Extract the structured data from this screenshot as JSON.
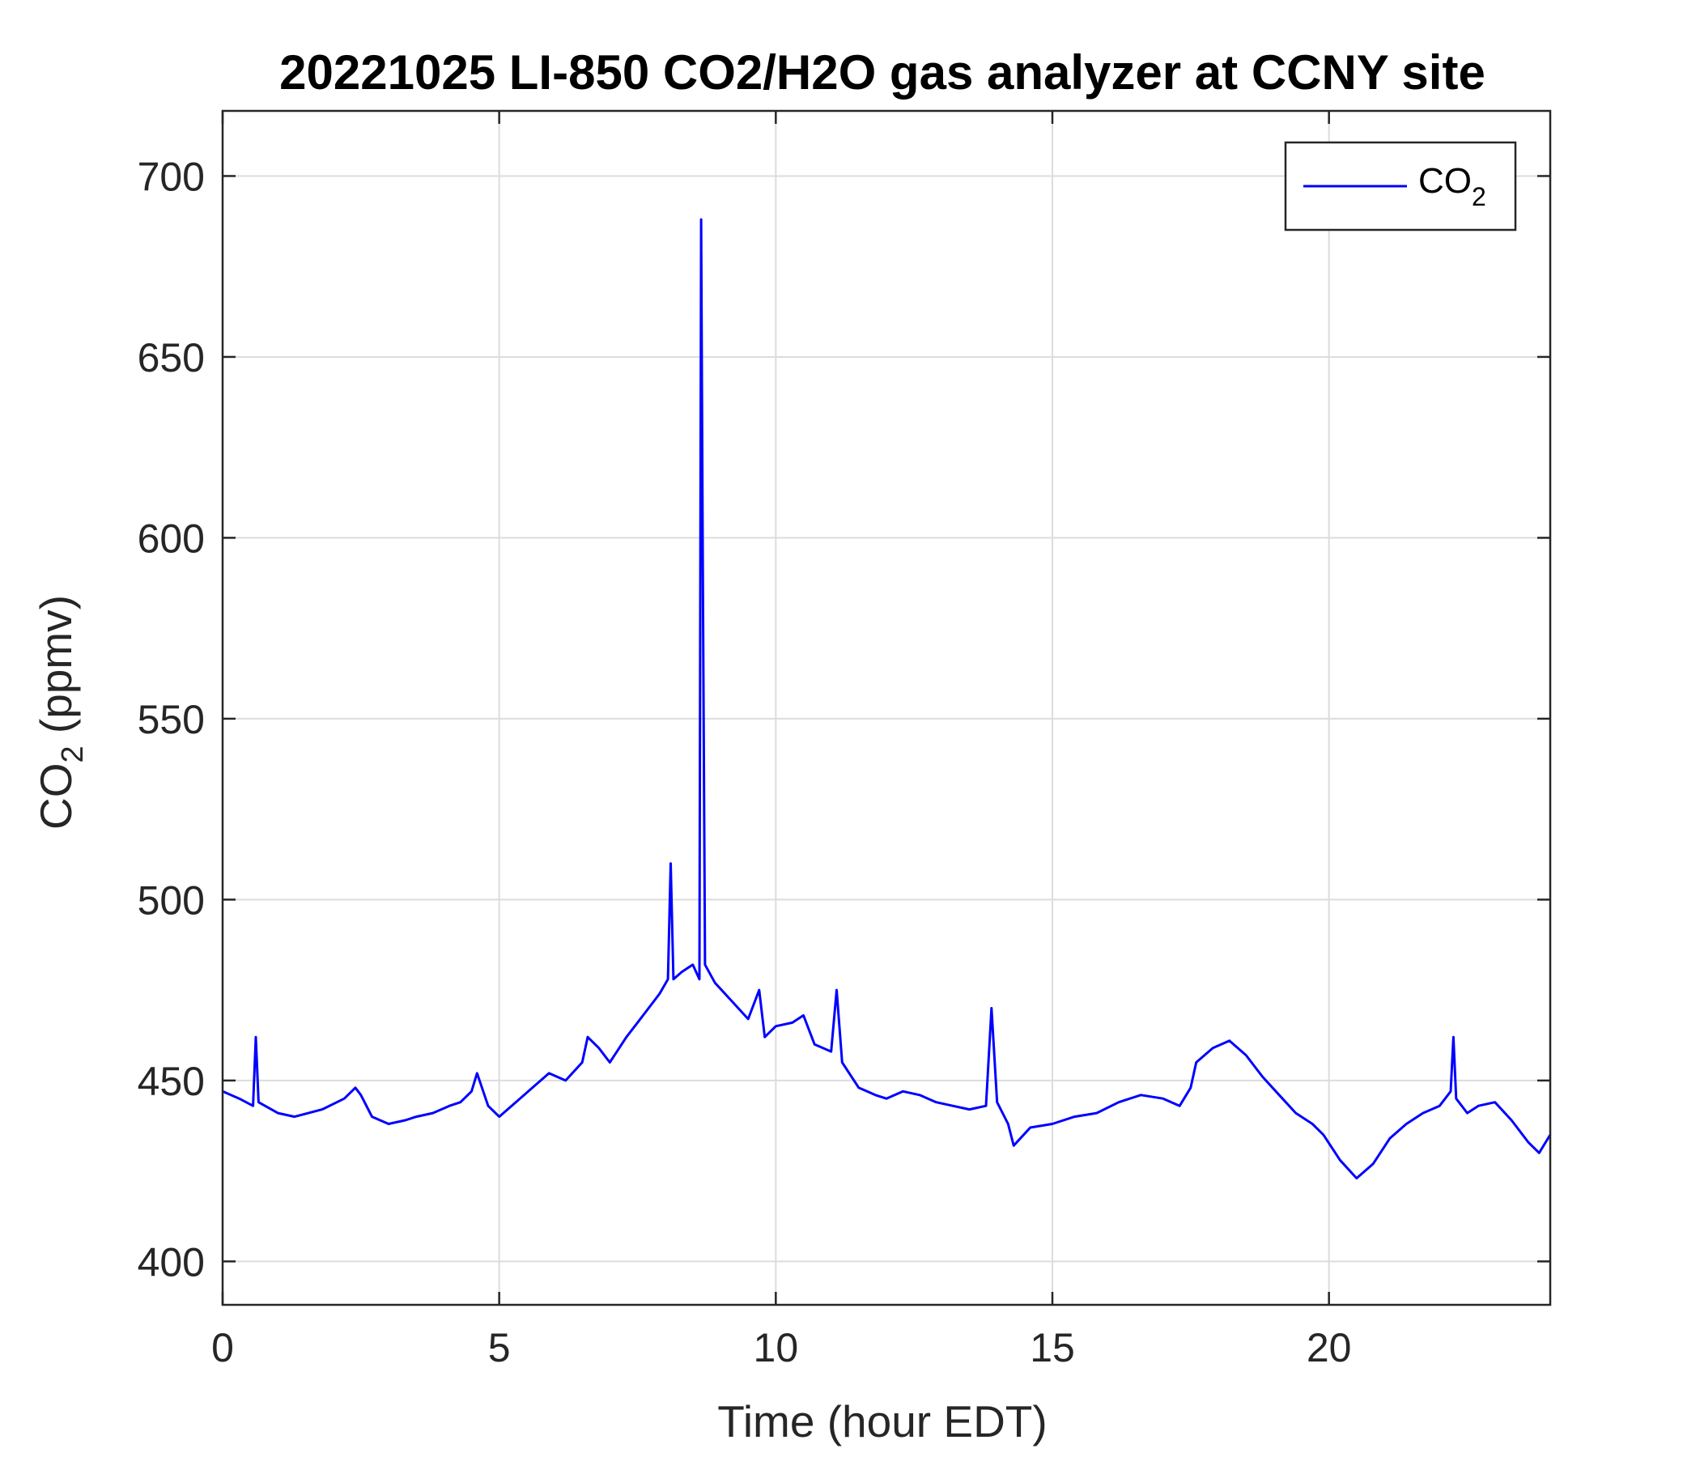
{
  "chart_data": {
    "type": "line",
    "title": "20221025 LI-850 CO2/H2O gas analyzer at CCNY site",
    "xlabel": "Time (hour EDT)",
    "ylabel": "CO",
    "ylabel_sub": "2",
    "ylabel_suffix": " (ppmv)",
    "xlim": [
      0,
      24
    ],
    "ylim": [
      388,
      718
    ],
    "xticks": [
      0,
      5,
      10,
      15,
      20
    ],
    "yticks": [
      400,
      450,
      500,
      550,
      600,
      650,
      700
    ],
    "grid": true,
    "legend_position": "top-right",
    "series": [
      {
        "name": "CO",
        "name_sub": "2",
        "color": "#0000ff",
        "x": [
          0,
          0.3,
          0.55,
          0.6,
          0.65,
          1.0,
          1.3,
          1.8,
          2.2,
          2.4,
          2.5,
          2.7,
          3.0,
          3.3,
          3.5,
          3.8,
          4.1,
          4.3,
          4.5,
          4.6,
          4.8,
          5.0,
          5.3,
          5.6,
          5.9,
          6.2,
          6.5,
          6.6,
          6.8,
          7.0,
          7.3,
          7.5,
          7.7,
          7.9,
          8.05,
          8.1,
          8.15,
          8.3,
          8.5,
          8.62,
          8.65,
          8.68,
          8.72,
          8.9,
          9.2,
          9.5,
          9.7,
          9.8,
          10.0,
          10.3,
          10.5,
          10.7,
          11.0,
          11.1,
          11.2,
          11.5,
          11.8,
          12.0,
          12.3,
          12.6,
          12.9,
          13.2,
          13.5,
          13.8,
          13.9,
          14.0,
          14.2,
          14.3,
          14.6,
          15.0,
          15.4,
          15.8,
          16.2,
          16.6,
          17.0,
          17.3,
          17.5,
          17.6,
          17.9,
          18.2,
          18.5,
          18.8,
          19.1,
          19.4,
          19.7,
          19.9,
          20.2,
          20.5,
          20.8,
          21.1,
          21.4,
          21.7,
          22.0,
          22.2,
          22.25,
          22.3,
          22.5,
          22.7,
          23.0,
          23.3,
          23.6,
          23.8,
          24.0
        ],
        "y": [
          447,
          445,
          443,
          462,
          444,
          441,
          440,
          442,
          445,
          448,
          446,
          440,
          438,
          439,
          440,
          441,
          443,
          444,
          447,
          452,
          443,
          440,
          444,
          448,
          452,
          450,
          455,
          462,
          459,
          455,
          462,
          466,
          470,
          474,
          478,
          510,
          478,
          480,
          482,
          478,
          688,
          595,
          482,
          477,
          472,
          467,
          475,
          462,
          465,
          466,
          468,
          460,
          458,
          475,
          455,
          448,
          446,
          445,
          447,
          446,
          444,
          443,
          442,
          443,
          470,
          444,
          438,
          432,
          437,
          438,
          440,
          441,
          444,
          446,
          445,
          443,
          448,
          455,
          459,
          461,
          457,
          451,
          446,
          441,
          438,
          435,
          428,
          423,
          427,
          434,
          438,
          441,
          443,
          447,
          462,
          445,
          441,
          443,
          444,
          439,
          433,
          430,
          435
        ]
      }
    ]
  }
}
